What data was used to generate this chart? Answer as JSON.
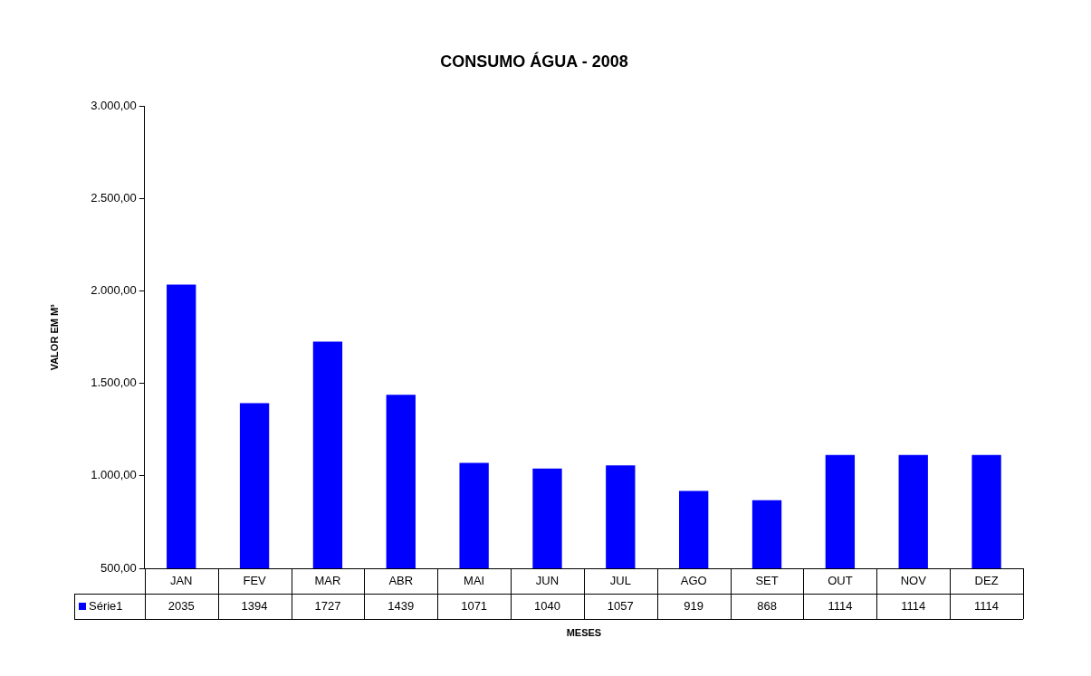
{
  "chart_data": {
    "type": "bar",
    "title": "CONSUMO ÁGUA - 2008",
    "xlabel": "MESES",
    "ylabel": "VALOR EM M³",
    "categories": [
      "JAN",
      "FEV",
      "MAR",
      "ABR",
      "MAI",
      "JUN",
      "JUL",
      "AGO",
      "SET",
      "OUT",
      "NOV",
      "DEZ"
    ],
    "series": [
      {
        "name": "Série1",
        "color": "#0000ff",
        "values": [
          2035,
          1394,
          1727,
          1439,
          1071,
          1040,
          1057,
          919,
          868,
          1114,
          1114,
          1114
        ]
      }
    ],
    "ylim": [
      500,
      3000
    ],
    "yticks": [
      {
        "value": 500,
        "label": "500,00"
      },
      {
        "value": 1000,
        "label": "1.000,00"
      },
      {
        "value": 1500,
        "label": "1.500,00"
      },
      {
        "value": 2000,
        "label": "2.000,00"
      },
      {
        "value": 2500,
        "label": "2.500,00"
      },
      {
        "value": 3000,
        "label": "3.000,00"
      }
    ],
    "grid": false,
    "legend": "bottom",
    "data_labels": true
  }
}
